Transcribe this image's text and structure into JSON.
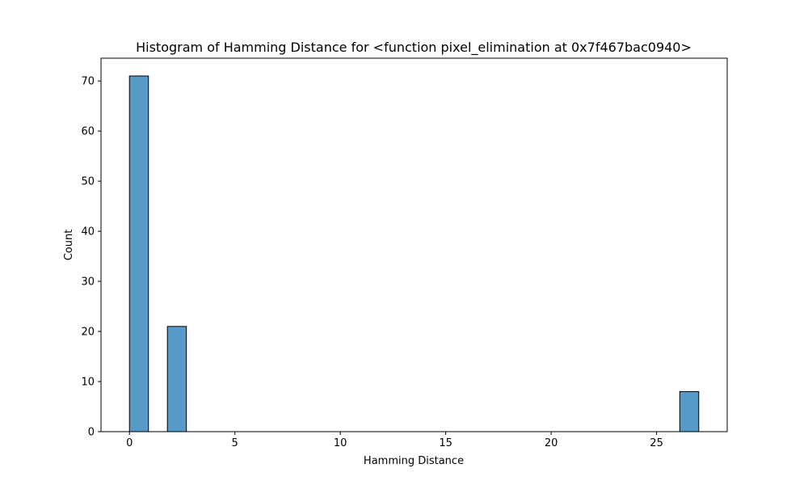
{
  "chart_data": {
    "type": "bar",
    "title": "Histogram of Hamming Distance for <function pixel_elimination at 0x7f467bac0940>",
    "xlabel": "Hamming Distance",
    "ylabel": "Count",
    "xlim": [
      -1.35,
      28.35
    ],
    "ylim": [
      0,
      74.55
    ],
    "xticks": [
      0,
      5,
      10,
      15,
      20,
      25
    ],
    "yticks": [
      0,
      10,
      20,
      30,
      40,
      50,
      60,
      70
    ],
    "bin_width": 0.9,
    "bins": [
      {
        "x_start": 0.0,
        "value": 71
      },
      {
        "x_start": 0.9,
        "value": 0
      },
      {
        "x_start": 1.8,
        "value": 21
      },
      {
        "x_start": 2.7,
        "value": 0
      },
      {
        "x_start": 3.6,
        "value": 0
      },
      {
        "x_start": 4.5,
        "value": 0
      },
      {
        "x_start": 5.4,
        "value": 0
      },
      {
        "x_start": 6.3,
        "value": 0
      },
      {
        "x_start": 7.2,
        "value": 0
      },
      {
        "x_start": 8.1,
        "value": 0
      },
      {
        "x_start": 9.0,
        "value": 0
      },
      {
        "x_start": 9.9,
        "value": 0
      },
      {
        "x_start": 10.8,
        "value": 0
      },
      {
        "x_start": 11.7,
        "value": 0
      },
      {
        "x_start": 12.6,
        "value": 0
      },
      {
        "x_start": 13.5,
        "value": 0
      },
      {
        "x_start": 14.4,
        "value": 0
      },
      {
        "x_start": 15.3,
        "value": 0
      },
      {
        "x_start": 16.2,
        "value": 0
      },
      {
        "x_start": 17.1,
        "value": 0
      },
      {
        "x_start": 18.0,
        "value": 0
      },
      {
        "x_start": 18.9,
        "value": 0
      },
      {
        "x_start": 19.8,
        "value": 0
      },
      {
        "x_start": 20.7,
        "value": 0
      },
      {
        "x_start": 21.6,
        "value": 0
      },
      {
        "x_start": 22.5,
        "value": 0
      },
      {
        "x_start": 23.4,
        "value": 0
      },
      {
        "x_start": 24.3,
        "value": 0
      },
      {
        "x_start": 25.2,
        "value": 0
      },
      {
        "x_start": 26.1,
        "value": 8
      }
    ],
    "grid": false,
    "bar_color": "#5799c7",
    "edge_color": "#000000"
  }
}
